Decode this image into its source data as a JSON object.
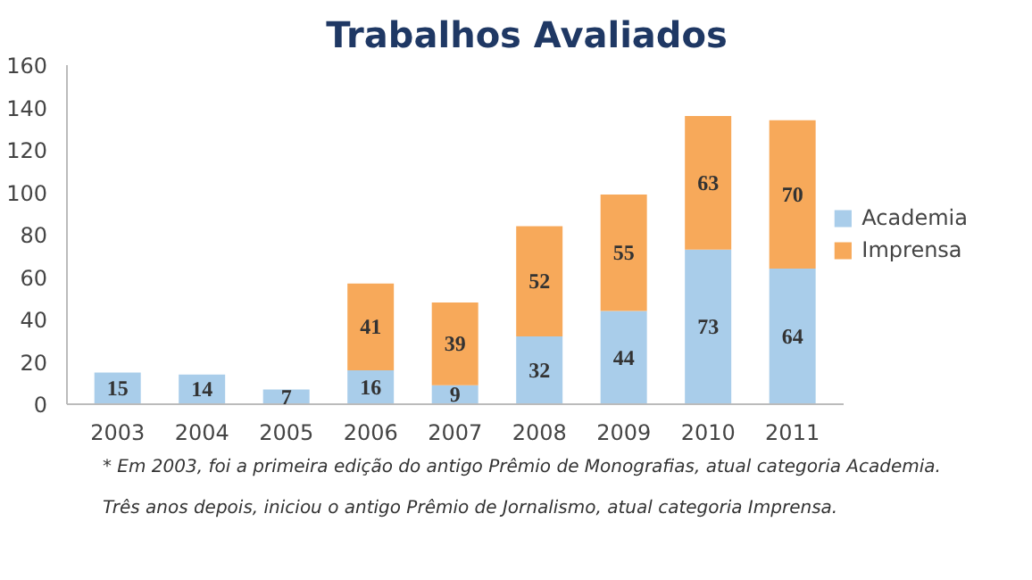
{
  "chart_data": {
    "type": "bar",
    "title": "Trabalhos Avaliados",
    "stacked": true,
    "data_labels": true,
    "legend": "right",
    "grid": false,
    "categories": [
      "2003",
      "2004",
      "2005",
      "2006",
      "2007",
      "2008",
      "2009",
      "2010",
      "2011"
    ],
    "series": [
      {
        "name": "Academia",
        "color": "#a9cdea",
        "values": [
          15,
          14,
          7,
          16,
          9,
          32,
          44,
          73,
          64
        ]
      },
      {
        "name": "Imprensa",
        "color": "#f7a95a",
        "values": [
          null,
          null,
          null,
          41,
          39,
          52,
          55,
          63,
          70
        ]
      }
    ],
    "ylim": [
      0,
      160
    ],
    "yticks": [
      0,
      20,
      40,
      60,
      80,
      100,
      120,
      140,
      160
    ],
    "annotations": [
      "* Em 2003, foi a primeira edição do antigo Prêmio de Monografias, atual categoria Academia.",
      "Três anos depois, iniciou o antigo Prêmio de Jornalismo, atual categoria Imprensa."
    ]
  }
}
